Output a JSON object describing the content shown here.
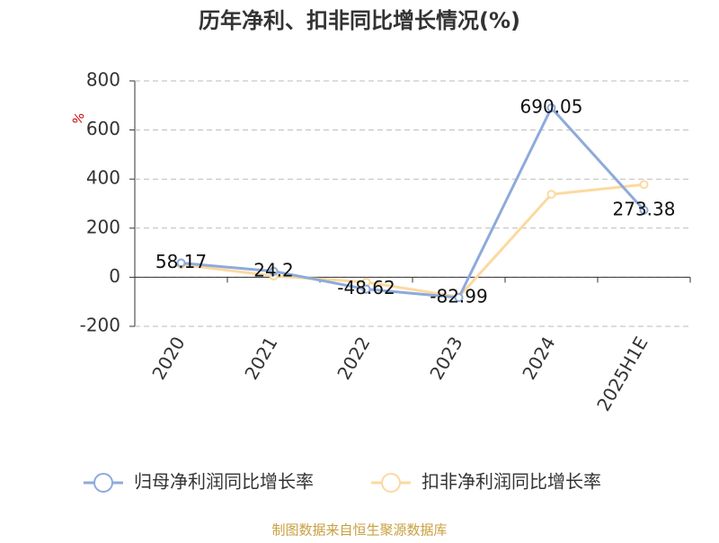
{
  "chart_data": {
    "type": "line",
    "title": "历年净利、扣非同比增长情况(%)",
    "y_label": "%",
    "categories": [
      "2020",
      "2021",
      "2022",
      "2023",
      "2024",
      "2025H1E"
    ],
    "series": [
      {
        "name": "归母净利润同比增长率",
        "color": "#8eaadb",
        "values": [
          58.17,
          24.2,
          -48.62,
          -82.99,
          690.05,
          273.38
        ]
      },
      {
        "name": "扣非净利润同比增长率",
        "color": "#fcd9a1",
        "values": [
          52,
          5,
          -20,
          -80,
          338,
          378
        ]
      }
    ],
    "ylim": [
      -200,
      800
    ],
    "yticks": [
      -200,
      0,
      200,
      400,
      600,
      800
    ],
    "grid": true,
    "source": "制图数据来自恒生聚源数据库"
  }
}
